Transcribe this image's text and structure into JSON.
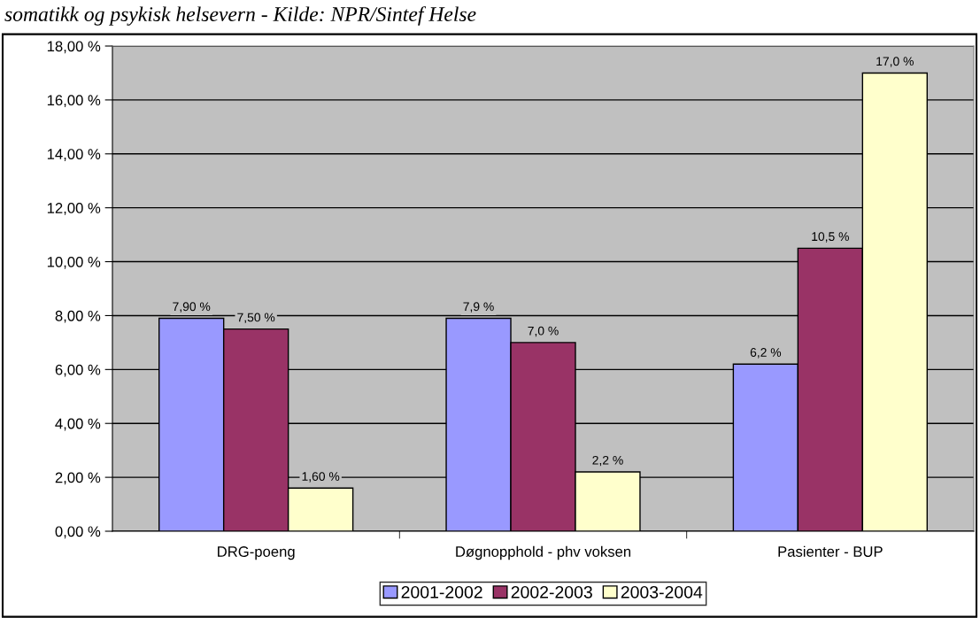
{
  "chart_data": {
    "type": "bar",
    "title": "somatikk og psykisk helsevern - Kilde: NPR/Sintef Helse",
    "categories": [
      "DRG-poeng",
      "Døgnopphold - phv voksen",
      "Pasienter - BUP"
    ],
    "series": [
      {
        "name": "2001-2002",
        "color": "#9999ff",
        "values": [
          7.9,
          7.9,
          6.2
        ],
        "value_labels": [
          "7,90 %",
          "7,9 %",
          "6,2 %"
        ]
      },
      {
        "name": "2002-2003",
        "color": "#993366",
        "values": [
          7.5,
          7.0,
          10.5
        ],
        "value_labels": [
          "7,50 %",
          "7,0 %",
          "10,5 %"
        ]
      },
      {
        "name": "2003-2004",
        "color": "#ffffcc",
        "values": [
          1.6,
          2.2,
          17.0
        ],
        "value_labels": [
          "1,60 %",
          "2,2 %",
          "17,0 %"
        ]
      }
    ],
    "ylim": [
      0,
      18
    ],
    "yticks": [
      {
        "value": 0,
        "label": "0,00 %"
      },
      {
        "value": 2,
        "label": "2,00 %"
      },
      {
        "value": 4,
        "label": "4,00 %"
      },
      {
        "value": 6,
        "label": "6,00 %"
      },
      {
        "value": 8,
        "label": "8,00 %"
      },
      {
        "value": 10,
        "label": "10,00 %"
      },
      {
        "value": 12,
        "label": "12,00 %"
      },
      {
        "value": 14,
        "label": "14,00 %"
      },
      {
        "value": 16,
        "label": "16,00 %"
      },
      {
        "value": 18,
        "label": "18,00 %"
      }
    ],
    "grid": "y",
    "legend": "bottom"
  }
}
